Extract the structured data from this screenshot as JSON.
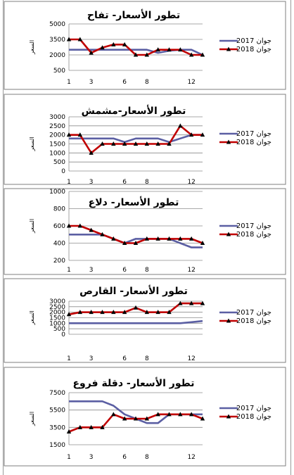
{
  "series_names": [
    "جوان 2017",
    "جوان 2018"
  ],
  "y_label": "السعر",
  "colors": {
    "s2017": "#5b5fa3",
    "s2018": "#c00000",
    "markers": "#000000",
    "grid": "#8c8c8c",
    "border": "#7f7f7f"
  },
  "chart_data": [
    {
      "type": "line",
      "title": "تطور الأسعار- تفاح",
      "x": [
        1,
        2,
        3,
        4,
        5,
        6,
        7,
        8,
        9,
        10,
        11,
        12,
        13
      ],
      "x_ticks": [
        "1",
        "3",
        "6",
        "8",
        "12"
      ],
      "y_ticks": [
        "500",
        "2000",
        "3500",
        "5000"
      ],
      "ylim": [
        500,
        5000
      ],
      "series": [
        {
          "name": "جوان 2017",
          "values": [
            2500,
            2500,
            2500,
            2500,
            2500,
            2500,
            2500,
            2500,
            2200,
            2400,
            2500,
            2500,
            2000
          ]
        },
        {
          "name": "جوان 2018",
          "values": [
            3500,
            3500,
            2200,
            2700,
            3000,
            3000,
            2000,
            2000,
            2500,
            2500,
            2500,
            2000,
            2000
          ]
        }
      ]
    },
    {
      "type": "line",
      "title": "تطور الأسعار-مشمش",
      "x": [
        1,
        2,
        3,
        4,
        5,
        6,
        7,
        8,
        9,
        10,
        11,
        12,
        13
      ],
      "x_ticks": [
        "1",
        "3",
        "6",
        "8",
        "12"
      ],
      "y_ticks": [
        "0",
        "500",
        "1000",
        "1500",
        "2000",
        "2500",
        "3000"
      ],
      "ylim": [
        0,
        3000
      ],
      "series": [
        {
          "name": "جوان 2017",
          "values": [
            1800,
            1800,
            1800,
            1800,
            1800,
            1600,
            1800,
            1800,
            1800,
            1600,
            1800,
            2000,
            2000
          ]
        },
        {
          "name": "جوان 2018",
          "values": [
            2000,
            2000,
            1000,
            1500,
            1500,
            1500,
            1500,
            1500,
            1500,
            1500,
            2500,
            2000,
            2000
          ]
        }
      ]
    },
    {
      "type": "line",
      "title": "تطور الأسعار- دلاع",
      "x": [
        1,
        2,
        3,
        4,
        5,
        6,
        7,
        8,
        9,
        10,
        11,
        12,
        13
      ],
      "x_ticks": [
        "1",
        "3",
        "6",
        "8",
        "12"
      ],
      "y_ticks": [
        "200",
        "400",
        "600",
        "800",
        "1000"
      ],
      "ylim": [
        200,
        1000
      ],
      "series": [
        {
          "name": "جوان 2017",
          "values": [
            500,
            500,
            500,
            500,
            450,
            400,
            450,
            450,
            450,
            450,
            400,
            350,
            350
          ]
        },
        {
          "name": "جوان 2018",
          "values": [
            600,
            600,
            550,
            500,
            450,
            400,
            400,
            450,
            450,
            450,
            450,
            450,
            400
          ]
        }
      ]
    },
    {
      "type": "line",
      "title": "تطور الأسعار- القارص",
      "x": [
        1,
        2,
        3,
        4,
        5,
        6,
        7,
        8,
        9,
        10,
        11,
        12,
        13
      ],
      "x_ticks": [
        "1",
        "3",
        "6",
        "8",
        "12"
      ],
      "y_ticks": [
        "0",
        "500",
        "1000",
        "1500",
        "2000",
        "2500",
        "3000"
      ],
      "ylim": [
        0,
        3000
      ],
      "series": [
        {
          "name": "جوان 2017",
          "values": [
            1000,
            1000,
            1000,
            1000,
            1000,
            1000,
            1000,
            1000,
            1000,
            1000,
            1000,
            1100,
            1200
          ]
        },
        {
          "name": "جوان 2018",
          "values": [
            1800,
            2000,
            2000,
            2000,
            2000,
            2000,
            2400,
            2000,
            2000,
            2000,
            2800,
            2800,
            2800
          ]
        }
      ]
    },
    {
      "type": "line",
      "title": "تطور الأسعار- دقلة فروع",
      "x": [
        1,
        2,
        3,
        4,
        5,
        6,
        7,
        8,
        9,
        10,
        11,
        12,
        13
      ],
      "x_ticks": [
        "1",
        "3",
        "6",
        "8",
        "12"
      ],
      "y_ticks": [
        "1500",
        "3500",
        "5500",
        "7500"
      ],
      "ylim": [
        1500,
        7500
      ],
      "series": [
        {
          "name": "جوان 2017",
          "values": [
            6500,
            6500,
            6500,
            6500,
            6000,
            5000,
            4500,
            4000,
            4000,
            5000,
            5000,
            5000,
            5000
          ]
        },
        {
          "name": "جوان 2018",
          "values": [
            3000,
            3500,
            3500,
            3500,
            5000,
            4500,
            4500,
            4500,
            5000,
            5000,
            5000,
            5000,
            4500
          ]
        }
      ]
    }
  ]
}
